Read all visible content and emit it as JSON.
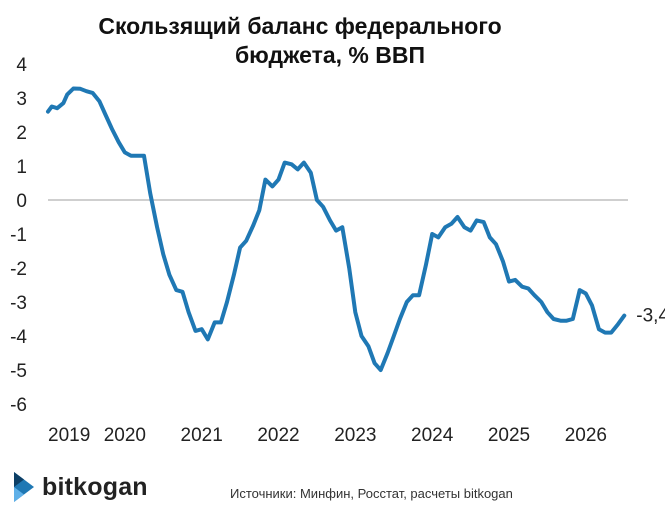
{
  "chart_data": {
    "type": "line",
    "title_lines": [
      "Скользящий баланс федерального",
      "бюджета, % ВВП"
    ],
    "xlabel": "",
    "ylabel": "",
    "ylim": [
      -6,
      4
    ],
    "yticks": [
      4,
      3,
      2,
      1,
      0,
      -1,
      -2,
      -3,
      -4,
      -5,
      -6
    ],
    "xlim": [
      2019.0,
      2026.9
    ],
    "xticks": [
      2019,
      2020,
      2021,
      2022,
      2023,
      2024,
      2025,
      2026
    ],
    "xtick_labels": [
      "2019",
      "2020",
      "2021",
      "2022",
      "2023",
      "2024",
      "2025",
      "2026"
    ],
    "grid": false,
    "line_color": "#1f78b4",
    "end_label": "-3,4",
    "series": [
      {
        "values": [
          [
            2019.0,
            2.6
          ],
          [
            2019.05,
            2.75
          ],
          [
            2019.12,
            2.7
          ],
          [
            2019.2,
            2.85
          ],
          [
            2019.25,
            3.1
          ],
          [
            2019.33,
            3.28
          ],
          [
            2019.42,
            3.27
          ],
          [
            2019.5,
            3.2
          ],
          [
            2019.58,
            3.15
          ],
          [
            2019.67,
            2.9
          ],
          [
            2019.75,
            2.5
          ],
          [
            2019.83,
            2.1
          ],
          [
            2019.92,
            1.7
          ],
          [
            2020.0,
            1.4
          ],
          [
            2020.08,
            1.3
          ],
          [
            2020.17,
            1.3
          ],
          [
            2020.25,
            1.3
          ],
          [
            2020.33,
            0.2
          ],
          [
            2020.42,
            -0.8
          ],
          [
            2020.5,
            -1.6
          ],
          [
            2020.58,
            -2.2
          ],
          [
            2020.67,
            -2.65
          ],
          [
            2020.75,
            -2.7
          ],
          [
            2020.83,
            -3.3
          ],
          [
            2020.92,
            -3.85
          ],
          [
            2021.0,
            -3.8
          ],
          [
            2021.08,
            -4.1
          ],
          [
            2021.17,
            -3.6
          ],
          [
            2021.25,
            -3.6
          ],
          [
            2021.33,
            -3.0
          ],
          [
            2021.42,
            -2.2
          ],
          [
            2021.5,
            -1.4
          ],
          [
            2021.58,
            -1.2
          ],
          [
            2021.67,
            -0.75
          ],
          [
            2021.75,
            -0.3
          ],
          [
            2021.83,
            0.6
          ],
          [
            2021.92,
            0.4
          ],
          [
            2022.0,
            0.6
          ],
          [
            2022.08,
            1.1
          ],
          [
            2022.17,
            1.05
          ],
          [
            2022.25,
            0.9
          ],
          [
            2022.33,
            1.1
          ],
          [
            2022.42,
            0.8
          ],
          [
            2022.5,
            0.0
          ],
          [
            2022.58,
            -0.2
          ],
          [
            2022.67,
            -0.6
          ],
          [
            2022.75,
            -0.9
          ],
          [
            2022.83,
            -0.8
          ],
          [
            2022.92,
            -2.0
          ],
          [
            2023.0,
            -3.3
          ],
          [
            2023.08,
            -4.0
          ],
          [
            2023.17,
            -4.3
          ],
          [
            2023.25,
            -4.8
          ],
          [
            2023.33,
            -5.0
          ],
          [
            2023.42,
            -4.5
          ],
          [
            2023.5,
            -4.0
          ],
          [
            2023.58,
            -3.5
          ],
          [
            2023.67,
            -3.0
          ],
          [
            2023.75,
            -2.8
          ],
          [
            2023.83,
            -2.8
          ],
          [
            2023.92,
            -1.9
          ],
          [
            2024.0,
            -1.0
          ],
          [
            2024.08,
            -1.1
          ],
          [
            2024.17,
            -0.8
          ],
          [
            2024.25,
            -0.7
          ],
          [
            2024.33,
            -0.5
          ],
          [
            2024.42,
            -0.8
          ],
          [
            2024.5,
            -0.9
          ],
          [
            2024.58,
            -0.6
          ],
          [
            2024.67,
            -0.65
          ],
          [
            2024.75,
            -1.1
          ],
          [
            2024.83,
            -1.3
          ],
          [
            2024.92,
            -1.8
          ],
          [
            2025.0,
            -2.4
          ],
          [
            2025.08,
            -2.35
          ],
          [
            2025.17,
            -2.55
          ],
          [
            2025.25,
            -2.6
          ],
          [
            2025.33,
            -2.8
          ],
          [
            2025.42,
            -3.0
          ],
          [
            2025.5,
            -3.3
          ],
          [
            2025.58,
            -3.5
          ],
          [
            2025.67,
            -3.55
          ],
          [
            2025.75,
            -3.55
          ],
          [
            2025.83,
            -3.5
          ],
          [
            2025.92,
            -2.65
          ],
          [
            2026.0,
            -2.75
          ],
          [
            2026.08,
            -3.1
          ],
          [
            2026.17,
            -3.8
          ],
          [
            2026.25,
            -3.9
          ],
          [
            2026.33,
            -3.9
          ],
          [
            2026.42,
            -3.65
          ],
          [
            2026.5,
            -3.4
          ]
        ]
      }
    ]
  },
  "brand": {
    "name": "bitkogan",
    "icon": "bitkogan-logo-icon",
    "accent": "#1f78b4"
  },
  "source_text": "Источники: Минфин, Росстат, расчеты bitkogan"
}
